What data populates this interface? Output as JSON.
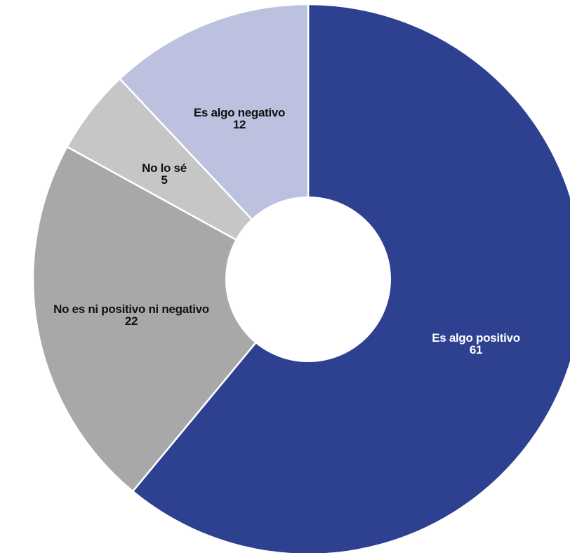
{
  "chart_data": {
    "type": "pie",
    "style": "donut",
    "title": "",
    "slices": [
      {
        "label": "Es algo positivo",
        "value": 61,
        "color": "#2e4191",
        "text_color": "#ffffff"
      },
      {
        "label": "No es ni positivo ni negativo",
        "value": 22,
        "color": "#a8a8a8",
        "text_color": "#111111"
      },
      {
        "label": "No lo sé",
        "value": 5,
        "color": "#c6c6c6",
        "text_color": "#111111"
      },
      {
        "label": "Es algo negativo",
        "value": 12,
        "color": "#bcc1e0",
        "text_color": "#111111"
      }
    ]
  }
}
